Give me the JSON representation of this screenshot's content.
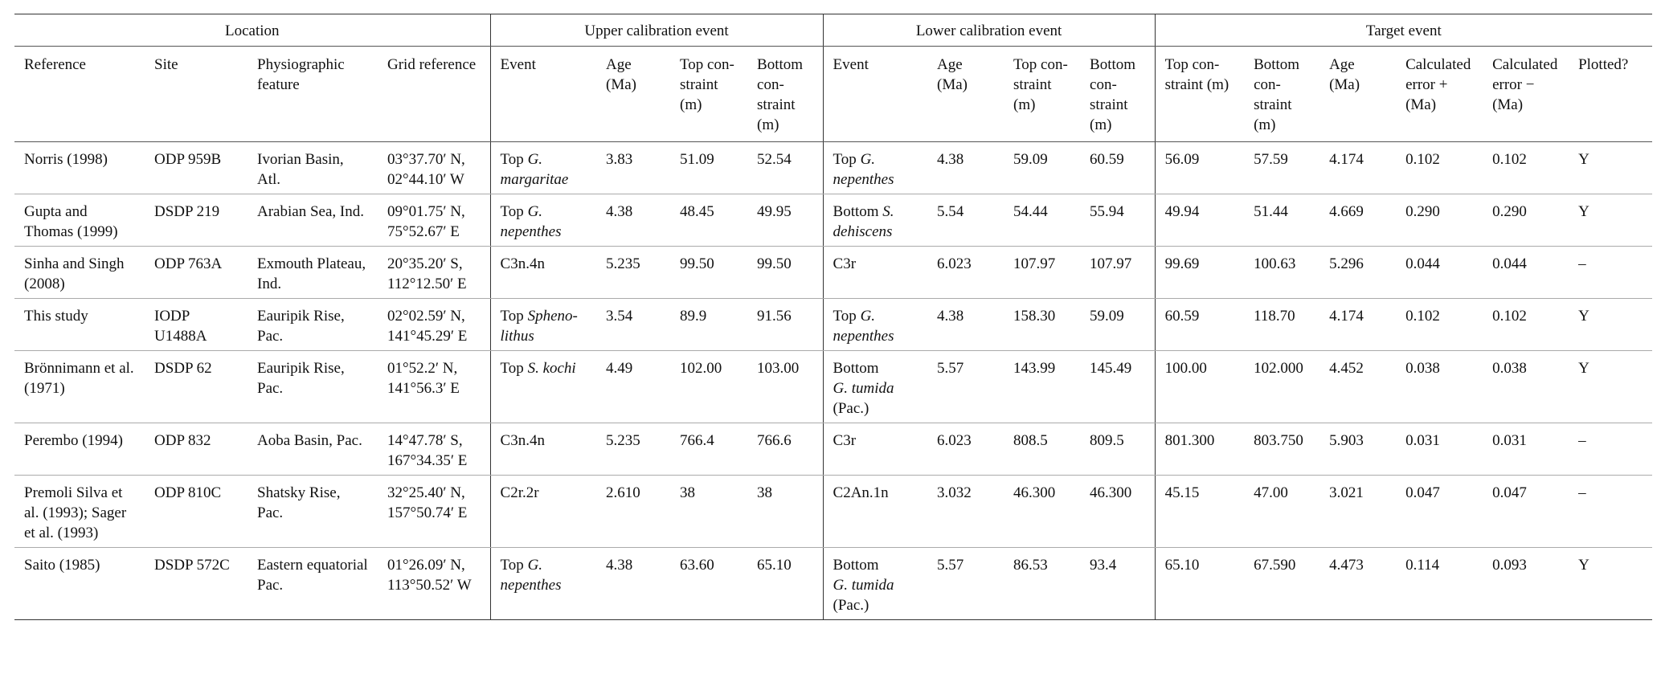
{
  "table": {
    "groups": [
      {
        "text": "Location",
        "span": 4
      },
      {
        "text": "Upper calibration event",
        "span": 4
      },
      {
        "text": "Lower calibration event",
        "span": 4
      },
      {
        "text": "Target event",
        "span": 6
      }
    ],
    "columns": [
      "Reference",
      "Site",
      "Physiographic feature",
      "Grid reference",
      "Event",
      "Age (Ma)",
      "Top con­straint (m)",
      "Bottom con­straint (m)",
      "Event",
      "Age (Ma)",
      "Top con­straint (m)",
      "Bottom con­straint (m)",
      "Top con­straint (m)",
      "Bottom con­straint (m)",
      "Age (Ma)",
      "Calculated error + (Ma)",
      "Calculated error − (Ma)",
      "Plotted?"
    ],
    "rows": [
      [
        "Norris (1998)",
        "ODP 959B",
        "Ivorian Basin, Atl.",
        "03°37.70′ N, 02°44.10′ W",
        [
          {
            "text": "Top"
          },
          {
            "text": "G. margaritae",
            "italic": true
          }
        ],
        "3.83",
        "51.09",
        "52.54",
        [
          {
            "text": "Top"
          },
          {
            "text": "G. nepenthes",
            "italic": true
          }
        ],
        "4.38",
        "59.09",
        "60.59",
        "56.09",
        "57.59",
        "4.174",
        "0.102",
        "0.102",
        "Y"
      ],
      [
        "Gupta and Thomas (1999)",
        "DSDP 219",
        "Arabian Sea, Ind.",
        "09°01.75′ N, 75°52.67′ E",
        [
          {
            "text": "Top"
          },
          {
            "text": "G. nepenthes",
            "italic": true
          }
        ],
        "4.38",
        "48.45",
        "49.95",
        [
          {
            "text": "Bottom"
          },
          {
            "text": "S. dehiscens",
            "italic": true
          }
        ],
        "5.54",
        "54.44",
        "55.94",
        "49.94",
        "51.44",
        "4.669",
        "0.290",
        "0.290",
        "Y"
      ],
      [
        "Sinha and Singh (2008)",
        "ODP 763A",
        "Exmouth Plateau, Ind.",
        "20°35.20′ S, 112°12.50′ E",
        "C3n.4n",
        "5.235",
        "99.50",
        "99.50",
        "C3r",
        "6.023",
        "107.97",
        "107.97",
        "99.69",
        "100.63",
        "5.296",
        "0.044",
        "0.044",
        "–"
      ],
      [
        "This study",
        "IODP U1488A",
        "Eauripik Rise, Pac.",
        "02°02.59′ N, 141°45.29′ E",
        [
          {
            "text": "Top"
          },
          {
            "text": "Spheno­lithus",
            "italic": true
          }
        ],
        "3.54",
        "89.9",
        "91.56",
        [
          {
            "text": "Top"
          },
          {
            "text": "G. nepenthes",
            "italic": true
          }
        ],
        "4.38",
        "158.30",
        "59.09",
        "60.59",
        "118.70",
        "4.174",
        "0.102",
        "0.102",
        "Y"
      ],
      [
        "Brönnimann et al. (1971)",
        "DSDP 62",
        "Eauripik Rise, Pac.",
        "01°52.2′ N, 141°56.3′ E",
        [
          {
            "text": "Top"
          },
          {
            "text": "S. kochi",
            "italic": true
          }
        ],
        "4.49",
        "102.00",
        "103.00",
        [
          {
            "text": "Bottom"
          },
          {
            "text": "G. tumida",
            "italic": true
          },
          {
            "text": "(Pac.)"
          }
        ],
        "5.57",
        "143.99",
        "145.49",
        "100.00",
        "102.000",
        "4.452",
        "0.038",
        "0.038",
        "Y"
      ],
      [
        "Perembo (1994)",
        "ODP 832",
        "Aoba Basin, Pac.",
        "14°47.78′ S, 167°34.35′ E",
        "C3n.4n",
        "5.235",
        "766.4",
        "766.6",
        "C3r",
        "6.023",
        "808.5",
        "809.5",
        "801.300",
        "803.750",
        "5.903",
        "0.031",
        "0.031",
        "–"
      ],
      [
        "Premoli Silva et al. (1993); Sager et al. (1993)",
        "ODP 810C",
        "Shatsky Rise, Pac.",
        "32°25.40′ N, 157°50.74′ E",
        "C2r.2r",
        "2.610",
        "38",
        "38",
        "C2An.1n",
        "3.032",
        "46.300",
        "46.300",
        "45.15",
        "47.00",
        "3.021",
        "0.047",
        "0.047",
        "–"
      ],
      [
        "Saito (1985)",
        "DSDP 572C",
        "Eastern equatorial Pac.",
        "01°26.09′ N, 113°50.52′ W",
        [
          {
            "text": "Top"
          },
          {
            "text": "G. nepenthes",
            "italic": true
          }
        ],
        "4.38",
        "63.60",
        "65.10",
        [
          {
            "text": "Bottom"
          },
          {
            "text": "G. tumida",
            "italic": true
          },
          {
            "text": "(Pac.)"
          }
        ],
        "5.57",
        "86.53",
        "93.4",
        "65.10",
        "67.590",
        "4.473",
        "0.114",
        "0.093",
        "Y"
      ]
    ]
  }
}
